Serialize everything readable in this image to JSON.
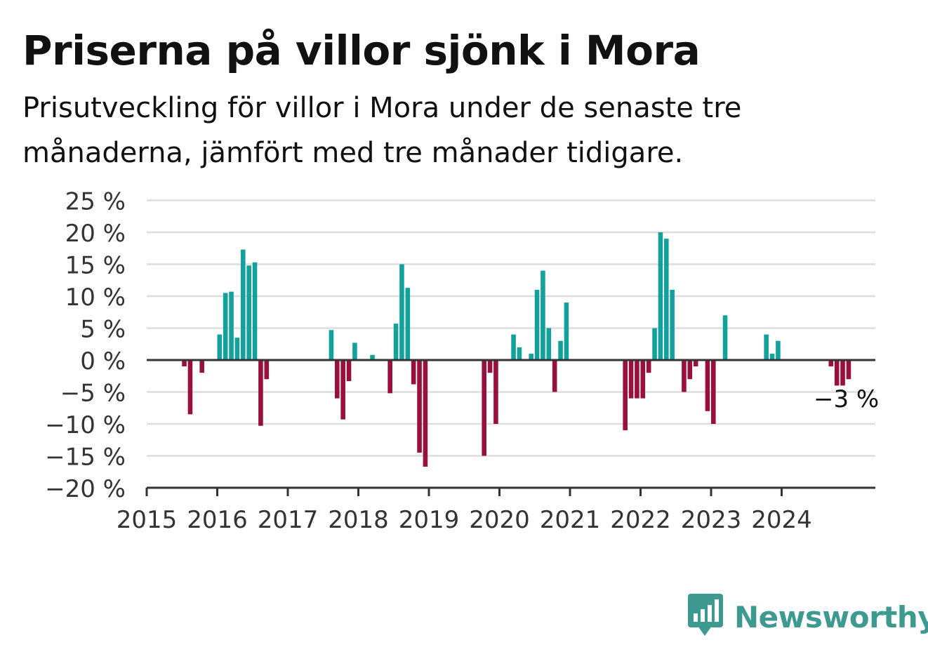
{
  "header": {
    "title": "Priserna på villor sjönk i Mora",
    "subtitle": "Prisutveckling för villor i Mora under de senaste tre månaderna, jämfört med tre månader tidigare."
  },
  "brand": {
    "name": "Newsworthy",
    "icon": "newsworthy-logo-icon"
  },
  "colors": {
    "positive": "#13a19c",
    "negative": "#990f3d",
    "grid": "#dddddd",
    "axis": "#333333",
    "brand": "#3e9a90"
  },
  "chart_data": {
    "type": "bar",
    "title": "Priserna på villor sjönk i Mora",
    "subtitle": "Prisutveckling för villor i Mora under de senaste tre månaderna, jämfört med tre månader tidigare.",
    "ylim": [
      -20,
      25
    ],
    "yticks": [
      25,
      20,
      15,
      10,
      5,
      0,
      -5,
      -10,
      -15,
      -20
    ],
    "ytick_labels": [
      "25 %",
      "20 %",
      "15 %",
      "10 %",
      "5 %",
      "0 %",
      "−5 %",
      "−10 %",
      "−15 %",
      "−20 %"
    ],
    "xticks": [
      "2015",
      "2016",
      "2017",
      "2018",
      "2019",
      "2020",
      "2021",
      "2022",
      "2023",
      "2024"
    ],
    "grid": true,
    "annotation": {
      "text": "−3 %",
      "month": "2024-12"
    },
    "series": [
      {
        "values": [
          {
            "month": "2015-07",
            "value": -1
          },
          {
            "month": "2015-08",
            "value": -8.5
          },
          {
            "month": "2015-10",
            "value": -2
          },
          {
            "month": "2016-01",
            "value": 4
          },
          {
            "month": "2016-02",
            "value": 10.5
          },
          {
            "month": "2016-03",
            "value": 10.7
          },
          {
            "month": "2016-04",
            "value": 3.5
          },
          {
            "month": "2016-05",
            "value": 17.3
          },
          {
            "month": "2016-06",
            "value": 14.8
          },
          {
            "month": "2016-07",
            "value": 15.3
          },
          {
            "month": "2016-08",
            "value": -10.3
          },
          {
            "month": "2016-09",
            "value": -3
          },
          {
            "month": "2017-08",
            "value": 4.7
          },
          {
            "month": "2017-09",
            "value": -6
          },
          {
            "month": "2017-10",
            "value": -9.3
          },
          {
            "month": "2017-11",
            "value": -3.3
          },
          {
            "month": "2017-12",
            "value": 2.7
          },
          {
            "month": "2018-03",
            "value": 0.8
          },
          {
            "month": "2018-06",
            "value": -5.2
          },
          {
            "month": "2018-07",
            "value": 5.7
          },
          {
            "month": "2018-08",
            "value": 15
          },
          {
            "month": "2018-09",
            "value": 11.3
          },
          {
            "month": "2018-10",
            "value": -3.8
          },
          {
            "month": "2018-11",
            "value": -14.5
          },
          {
            "month": "2018-12",
            "value": -16.7
          },
          {
            "month": "2019-10",
            "value": -15
          },
          {
            "month": "2019-11",
            "value": -2
          },
          {
            "month": "2019-12",
            "value": -10
          },
          {
            "month": "2020-03",
            "value": 4
          },
          {
            "month": "2020-04",
            "value": 2
          },
          {
            "month": "2020-06",
            "value": 1
          },
          {
            "month": "2020-07",
            "value": 11
          },
          {
            "month": "2020-08",
            "value": 14
          },
          {
            "month": "2020-09",
            "value": 5
          },
          {
            "month": "2020-10",
            "value": -5
          },
          {
            "month": "2020-11",
            "value": 3
          },
          {
            "month": "2020-12",
            "value": 9
          },
          {
            "month": "2021-10",
            "value": -11
          },
          {
            "month": "2021-11",
            "value": -6
          },
          {
            "month": "2021-12",
            "value": -6
          },
          {
            "month": "2022-01",
            "value": -6
          },
          {
            "month": "2022-02",
            "value": -2
          },
          {
            "month": "2022-03",
            "value": 5
          },
          {
            "month": "2022-04",
            "value": 20
          },
          {
            "month": "2022-05",
            "value": 19
          },
          {
            "month": "2022-06",
            "value": 11
          },
          {
            "month": "2022-08",
            "value": -5
          },
          {
            "month": "2022-09",
            "value": -3
          },
          {
            "month": "2022-10",
            "value": -1
          },
          {
            "month": "2022-12",
            "value": -8
          },
          {
            "month": "2023-01",
            "value": -10
          },
          {
            "month": "2023-03",
            "value": 7
          },
          {
            "month": "2023-10",
            "value": 4
          },
          {
            "month": "2023-11",
            "value": 1
          },
          {
            "month": "2023-12",
            "value": 3
          },
          {
            "month": "2024-09",
            "value": -1
          },
          {
            "month": "2024-10",
            "value": -4
          },
          {
            "month": "2024-11",
            "value": -4
          },
          {
            "month": "2024-12",
            "value": -3
          }
        ]
      }
    ]
  }
}
